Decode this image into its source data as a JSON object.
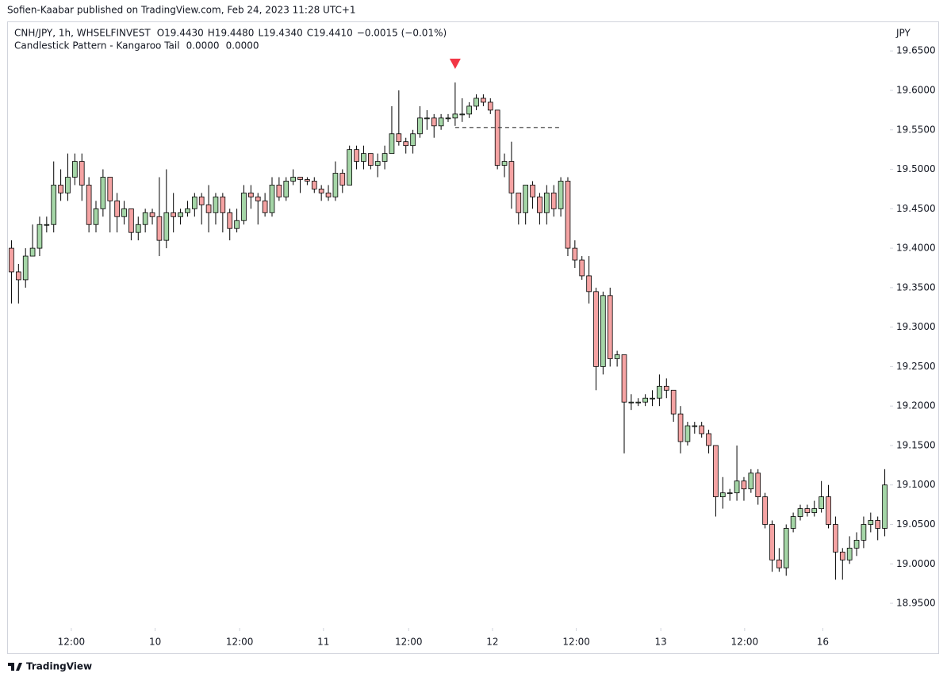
{
  "chart_data": {
    "type": "candlestick",
    "published": "Sofien-Kaabar published on TradingView.com, Feb 24, 2023 11:28 UTC+1",
    "symbol": "CNH/JPY, 1h, WHSELFINVEST",
    "ohlc_labels": [
      "O19.4430",
      "H19.4480",
      "L19.4340",
      "C19.4410",
      "−0.0015 (−0.01%)"
    ],
    "indicator": "Candlestick Pattern - Kangaroo Tail",
    "indicator_values": [
      "0.0000",
      "0.0000"
    ],
    "indicator_colors": [
      "#4caf50",
      "#f23645"
    ],
    "currency": "JPY",
    "brand": "TradingView",
    "up_color": "#a5d6a7",
    "down_color": "#f5a3a3",
    "signal_color": "#f23645",
    "signal_index": 63,
    "level_line": {
      "value": 19.553,
      "from": 63,
      "to": 78
    },
    "ylim": [
      18.9209,
      19.6864
    ],
    "xlim": [
      -0.5,
      124.5
    ],
    "yticks": [
      {
        "value": 19.65,
        "label": "19.6500"
      },
      {
        "value": 19.6,
        "label": "19.6000"
      },
      {
        "value": 19.55,
        "label": "19.5500"
      },
      {
        "value": 19.5,
        "label": "19.5000"
      },
      {
        "value": 19.45,
        "label": "19.4500"
      },
      {
        "value": 19.4,
        "label": "19.4000"
      },
      {
        "value": 19.35,
        "label": "19.3500"
      },
      {
        "value": 19.3,
        "label": "19.3000"
      },
      {
        "value": 19.25,
        "label": "19.2500"
      },
      {
        "value": 19.2,
        "label": "19.2000"
      },
      {
        "value": 19.15,
        "label": "19.1500"
      },
      {
        "value": 19.1,
        "label": "19.1000"
      },
      {
        "value": 19.05,
        "label": "19.0500"
      },
      {
        "value": 19.0,
        "label": "19.0000"
      },
      {
        "value": 18.95,
        "label": "18.9500"
      }
    ],
    "xticks": [
      {
        "value": 8.5,
        "label": "12:00"
      },
      {
        "value": 20.4,
        "label": "10"
      },
      {
        "value": 32.4,
        "label": "12:00"
      },
      {
        "value": 44.3,
        "label": "11"
      },
      {
        "value": 56.4,
        "label": "12:00"
      },
      {
        "value": 68.3,
        "label": "12"
      },
      {
        "value": 80.2,
        "label": "12:00"
      },
      {
        "value": 92.2,
        "label": "13"
      },
      {
        "value": 104.1,
        "label": "12:00"
      },
      {
        "value": 115.2,
        "label": "16"
      }
    ],
    "open": [
      19.4,
      19.37,
      19.36,
      19.39,
      19.4,
      19.43,
      19.43,
      19.48,
      19.47,
      19.49,
      19.51,
      19.48,
      19.43,
      19.45,
      19.49,
      19.46,
      19.44,
      19.45,
      19.42,
      19.43,
      19.445,
      19.44,
      19.41,
      19.445,
      19.44,
      19.445,
      19.45,
      19.465,
      19.455,
      19.445,
      19.465,
      19.445,
      19.425,
      19.435,
      19.47,
      19.465,
      19.46,
      19.445,
      19.48,
      19.465,
      19.485,
      19.49,
      19.487,
      19.485,
      19.475,
      19.47,
      19.465,
      19.495,
      19.48,
      19.525,
      19.51,
      19.52,
      19.505,
      19.51,
      19.52,
      19.545,
      19.535,
      19.53,
      19.545,
      19.565,
      19.565,
      19.555,
      19.565,
      19.565,
      19.57,
      19.57,
      19.58,
      19.59,
      19.585,
      19.575,
      19.505,
      19.51,
      19.47,
      19.445,
      19.48,
      19.465,
      19.445,
      19.47,
      19.45,
      19.485,
      19.4,
      19.385,
      19.365,
      19.345,
      19.25,
      19.34,
      19.26,
      19.265,
      19.205,
      19.205,
      19.205,
      19.21,
      19.21,
      19.225,
      19.22,
      19.19,
      19.155,
      19.175,
      19.175,
      19.165,
      19.15,
      19.085,
      19.09,
      19.09,
      19.105,
      19.095,
      19.115,
      19.085,
      19.05,
      19.005,
      18.995,
      19.045,
      19.06,
      19.07,
      19.065,
      19.07,
      19.085,
      19.05,
      19.015,
      19.005,
      19.02,
      19.03,
      19.05,
      19.055,
      19.045
    ],
    "high": [
      19.41,
      19.38,
      19.4,
      19.43,
      19.44,
      19.44,
      19.51,
      19.5,
      19.52,
      19.52,
      19.52,
      19.49,
      19.46,
      19.5,
      19.49,
      19.47,
      19.46,
      19.45,
      19.44,
      19.45,
      19.45,
      19.49,
      19.5,
      19.47,
      19.45,
      19.46,
      19.47,
      19.47,
      19.48,
      19.47,
      19.47,
      19.45,
      19.45,
      19.48,
      19.48,
      19.47,
      19.47,
      19.49,
      19.49,
      19.49,
      19.5,
      19.49,
      19.49,
      19.49,
      19.48,
      19.48,
      19.51,
      19.5,
      19.53,
      19.53,
      19.53,
      19.52,
      19.52,
      19.53,
      19.58,
      19.6,
      19.54,
      19.55,
      19.58,
      19.575,
      19.57,
      19.57,
      19.57,
      19.61,
      19.59,
      19.585,
      19.595,
      19.595,
      19.59,
      19.575,
      19.52,
      19.535,
      19.47,
      19.48,
      19.485,
      19.47,
      19.48,
      19.48,
      19.49,
      19.49,
      19.41,
      19.39,
      19.39,
      19.35,
      19.345,
      19.35,
      19.27,
      19.265,
      19.215,
      19.21,
      19.215,
      19.22,
      19.24,
      19.235,
      19.22,
      19.2,
      19.18,
      19.18,
      19.18,
      19.17,
      19.15,
      19.11,
      19.095,
      19.15,
      19.11,
      19.12,
      19.12,
      19.09,
      19.055,
      19.02,
      19.05,
      19.065,
      19.075,
      19.075,
      19.08,
      19.105,
      19.1,
      19.06,
      19.02,
      19.035,
      19.04,
      19.06,
      19.065,
      19.06,
      19.12
    ],
    "low": [
      19.33,
      19.33,
      19.35,
      19.39,
      19.39,
      19.42,
      19.42,
      19.46,
      19.46,
      19.48,
      19.46,
      19.42,
      19.42,
      19.44,
      19.42,
      19.42,
      19.43,
      19.41,
      19.41,
      19.42,
      19.43,
      19.39,
      19.4,
      19.42,
      19.43,
      19.44,
      19.44,
      19.43,
      19.42,
      19.43,
      19.42,
      19.41,
      19.42,
      19.43,
      19.45,
      19.43,
      19.44,
      19.44,
      19.46,
      19.46,
      19.48,
      19.47,
      19.48,
      19.47,
      19.46,
      19.46,
      19.46,
      19.47,
      19.48,
      19.5,
      19.5,
      19.5,
      19.49,
      19.5,
      19.52,
      19.53,
      19.52,
      19.52,
      19.54,
      19.55,
      19.54,
      19.55,
      19.56,
      19.555,
      19.56,
      19.565,
      19.575,
      19.58,
      19.57,
      19.5,
      19.49,
      19.45,
      19.43,
      19.43,
      19.45,
      19.43,
      19.43,
      19.44,
      19.44,
      19.39,
      19.375,
      19.36,
      19.33,
      19.22,
      19.24,
      19.25,
      19.25,
      19.14,
      19.195,
      19.2,
      19.2,
      19.2,
      19.2,
      19.21,
      19.18,
      19.14,
      19.15,
      19.165,
      19.16,
      19.14,
      19.06,
      19.07,
      19.08,
      19.08,
      19.08,
      19.09,
      19.075,
      19.045,
      18.99,
      18.99,
      18.985,
      19.04,
      19.055,
      19.06,
      19.06,
      19.065,
      19.045,
      18.98,
      18.98,
      19.0,
      19.01,
      19.02,
      19.04,
      19.03,
      19.035
    ],
    "close": [
      19.37,
      19.36,
      19.39,
      19.4,
      19.43,
      19.43,
      19.48,
      19.47,
      19.49,
      19.51,
      19.48,
      19.43,
      19.45,
      19.49,
      19.46,
      19.44,
      19.45,
      19.42,
      19.43,
      19.445,
      19.44,
      19.41,
      19.445,
      19.44,
      19.445,
      19.45,
      19.465,
      19.455,
      19.445,
      19.465,
      19.445,
      19.425,
      19.435,
      19.47,
      19.465,
      19.46,
      19.445,
      19.48,
      19.465,
      19.485,
      19.49,
      19.487,
      19.485,
      19.475,
      19.47,
      19.465,
      19.495,
      19.48,
      19.525,
      19.51,
      19.52,
      19.505,
      19.51,
      19.52,
      19.545,
      19.535,
      19.53,
      19.545,
      19.565,
      19.565,
      19.555,
      19.565,
      19.565,
      19.57,
      19.57,
      19.58,
      19.59,
      19.585,
      19.575,
      19.505,
      19.51,
      19.47,
      19.445,
      19.48,
      19.465,
      19.445,
      19.47,
      19.45,
      19.485,
      19.4,
      19.385,
      19.365,
      19.345,
      19.25,
      19.34,
      19.26,
      19.265,
      19.205,
      19.205,
      19.205,
      19.21,
      19.21,
      19.225,
      19.22,
      19.19,
      19.155,
      19.175,
      19.175,
      19.165,
      19.15,
      19.085,
      19.09,
      19.09,
      19.105,
      19.095,
      19.115,
      19.085,
      19.05,
      19.005,
      18.995,
      19.045,
      19.06,
      19.07,
      19.065,
      19.07,
      19.085,
      19.05,
      19.015,
      19.005,
      19.02,
      19.03,
      19.05,
      19.055,
      19.045,
      19.1
    ]
  }
}
